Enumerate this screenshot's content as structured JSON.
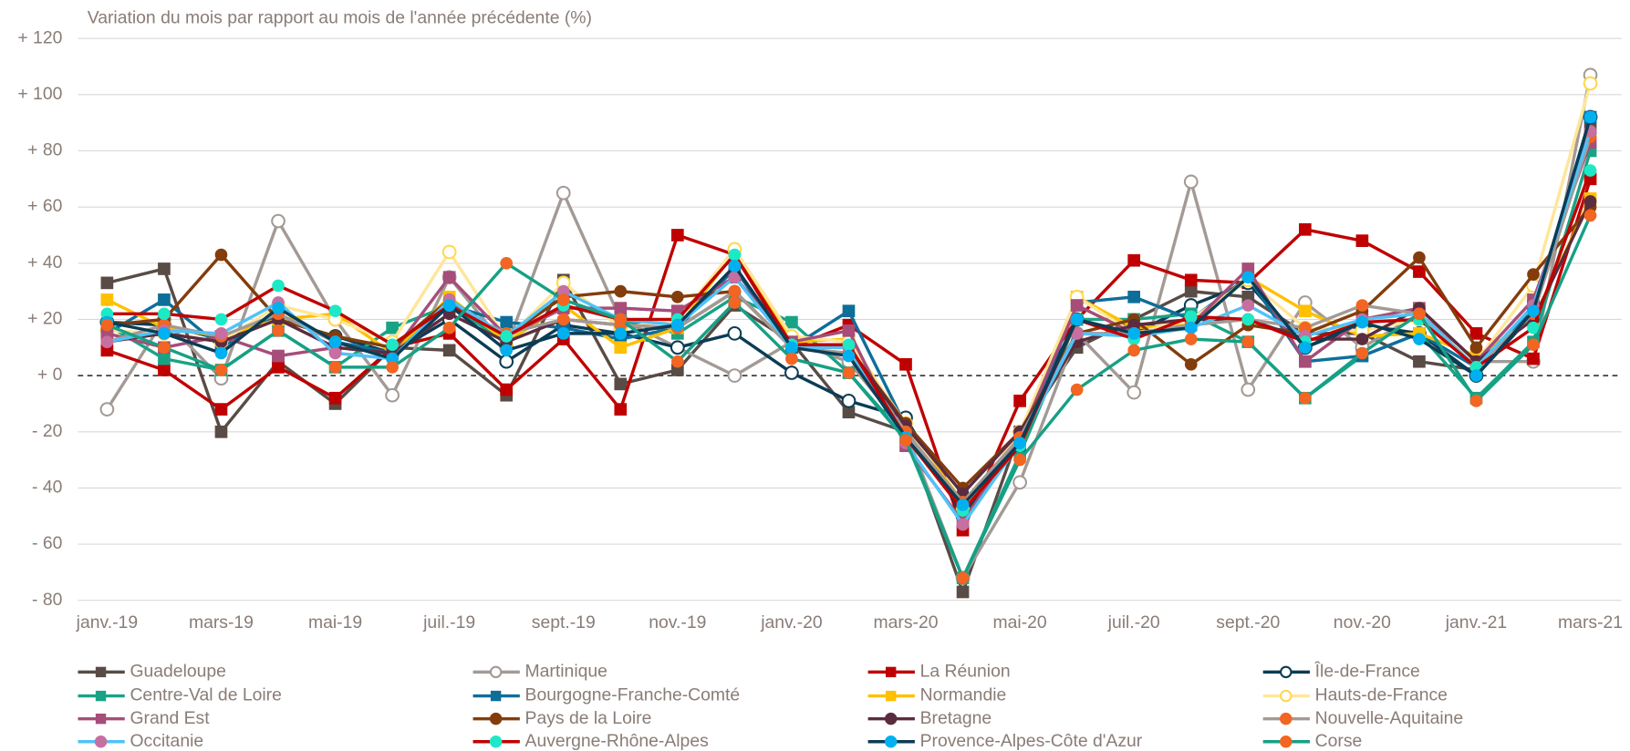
{
  "chart_data": {
    "type": "line",
    "title": "Variation du mois par rapport au mois de l'année précédente (%)",
    "categories": [
      "janv.-19",
      null,
      "mars-19",
      null,
      "mai-19",
      null,
      "juil.-19",
      null,
      "sept.-19",
      null,
      "nov.-19",
      null,
      "janv.-20",
      null,
      "mars-20",
      null,
      "mai-20",
      null,
      "juil.-20",
      null,
      "sept.-20",
      null,
      "nov.-20",
      null,
      "janv.-21",
      null,
      "mars-21"
    ],
    "ylim": [
      -80,
      120
    ],
    "yticks": [
      {
        "value": -80,
        "label": "- 80"
      },
      {
        "value": -60,
        "label": "- 60"
      },
      {
        "value": -40,
        "label": "- 40"
      },
      {
        "value": -20,
        "label": "- 20"
      },
      {
        "value": 0,
        "label": "+ 0"
      },
      {
        "value": 20,
        "label": "+ 20"
      },
      {
        "value": 40,
        "label": "+ 40"
      },
      {
        "value": 60,
        "label": "+ 60"
      },
      {
        "value": 80,
        "label": "+ 80"
      },
      {
        "value": 100,
        "label": "+ 100"
      },
      {
        "value": 120,
        "label": "+ 120"
      }
    ],
    "grid": true,
    "legend": "bottom",
    "series": [
      {
        "name": "Guadeloupe",
        "color": "#594b45",
        "marker": "square",
        "marker_color": "#594b45",
        "values": [
          33,
          38,
          -20,
          5,
          -10,
          10,
          9,
          -7,
          34,
          -3,
          2,
          25,
          12,
          -13,
          -20,
          -77,
          -20,
          10,
          20,
          30,
          28,
          15,
          15,
          5,
          2,
          25,
          88
        ]
      },
      {
        "name": "Martinique",
        "color": "#a39a95",
        "marker": "hollow-circle",
        "marker_color": "#a39a95",
        "values": [
          -12,
          20,
          -1,
          55,
          20,
          -7,
          35,
          10,
          65,
          20,
          10,
          0,
          12,
          5,
          -20,
          -72,
          -38,
          15,
          -6,
          69,
          -5,
          26,
          10,
          22,
          5,
          5,
          107
        ]
      },
      {
        "name": "La Réunion",
        "color": "#c00000",
        "marker": "square",
        "marker_color": "#c00000",
        "values": [
          9,
          2,
          -12,
          3,
          -8,
          10,
          15,
          -5,
          13,
          -12,
          50,
          43,
          10,
          18,
          4,
          -55,
          -9,
          20,
          41,
          34,
          33,
          52,
          48,
          37,
          15,
          6,
          70
        ]
      },
      {
        "name": "Île-de-France",
        "color": "#0b3c55",
        "marker": "hollow-circle",
        "marker_color": "#0b3c55",
        "values": [
          19,
          18,
          13,
          20,
          14,
          8,
          20,
          5,
          18,
          15,
          10,
          15,
          1,
          -9,
          -15,
          -50,
          -20,
          20,
          15,
          25,
          33,
          10,
          18,
          15,
          0,
          22,
          92
        ]
      },
      {
        "name": "Centre-Val de Loire",
        "color": "#19a386",
        "marker": "square",
        "marker_color": "#19a386",
        "values": [
          18,
          6,
          2,
          16,
          3,
          17,
          25,
          12,
          25,
          20,
          15,
          28,
          19,
          1,
          -22,
          -72,
          -28,
          20,
          20,
          22,
          12,
          -8,
          7,
          15,
          -8,
          12,
          80
        ]
      },
      {
        "name": "Bourgogne-Franche-Comté",
        "color": "#0e6e9a",
        "marker": "square",
        "marker_color": "#0e6e9a",
        "values": [
          15,
          27,
          10,
          22,
          12,
          8,
          25,
          19,
          17,
          13,
          17,
          38,
          10,
          23,
          -18,
          -48,
          -25,
          26,
          28,
          20,
          35,
          5,
          7,
          15,
          3,
          23,
          92
        ]
      },
      {
        "name": "Normandie",
        "color": "#ffc000",
        "marker": "square",
        "marker_color": "#ffc000",
        "values": [
          27,
          17,
          14,
          20,
          22,
          8,
          28,
          12,
          25,
          10,
          17,
          44,
          12,
          13,
          -18,
          -45,
          -22,
          28,
          17,
          18,
          35,
          23,
          14,
          15,
          7,
          20,
          63
        ]
      },
      {
        "name": "Hauts-de-France",
        "color": "#ffe699",
        "marker": "hollow-circle",
        "marker_color": "#ffd84d",
        "values": [
          16,
          15,
          12,
          25,
          20,
          12,
          44,
          13,
          33,
          17,
          20,
          45,
          14,
          12,
          -17,
          -48,
          -20,
          28,
          15,
          20,
          34,
          17,
          16,
          20,
          5,
          32,
          104
        ]
      },
      {
        "name": "Grand Est",
        "color": "#a64d79",
        "marker": "square",
        "marker_color": "#a64d79",
        "values": [
          15,
          10,
          14,
          7,
          10,
          8,
          35,
          14,
          24,
          24,
          23,
          35,
          12,
          16,
          -25,
          -52,
          -22,
          25,
          15,
          18,
          38,
          5,
          20,
          24,
          5,
          27,
          83
        ]
      },
      {
        "name": "Pays de la Loire",
        "color": "#833c0b",
        "marker": "circle",
        "marker_color": "#833c0b",
        "values": [
          18,
          20,
          43,
          20,
          14,
          10,
          27,
          14,
          28,
          30,
          28,
          30,
          10,
          10,
          -17,
          -40,
          -20,
          15,
          20,
          4,
          18,
          15,
          23,
          42,
          10,
          36,
          60
        ]
      },
      {
        "name": "Bretagne",
        "color": "#5b2c3f",
        "marker": "circle",
        "marker_color": "#5b2c3f",
        "values": [
          12,
          15,
          12,
          20,
          10,
          8,
          22,
          12,
          20,
          18,
          17,
          30,
          10,
          10,
          -18,
          -42,
          -20,
          12,
          18,
          20,
          20,
          13,
          13,
          24,
          5,
          20,
          62
        ]
      },
      {
        "name": "Nouvelle-Aquitaine",
        "color": "#a39a95",
        "marker": "circle",
        "marker_color": "#f26522",
        "values": [
          12,
          18,
          14,
          22,
          12,
          6,
          25,
          15,
          20,
          18,
          17,
          30,
          10,
          8,
          -20,
          -45,
          -22,
          15,
          15,
          18,
          20,
          17,
          25,
          22,
          3,
          22,
          85
        ]
      },
      {
        "name": "Occitanie",
        "color": "#4fc3f7",
        "marker": "circle",
        "marker_color": "#c66fa0",
        "values": [
          12,
          16,
          15,
          26,
          8,
          6,
          27,
          14,
          30,
          20,
          18,
          35,
          10,
          10,
          -24,
          -53,
          -24,
          15,
          14,
          17,
          25,
          14,
          20,
          22,
          3,
          25,
          87
        ]
      },
      {
        "name": "Auvergne-Rhône-Alpes",
        "color": "#c00000",
        "marker": "circle",
        "marker_color": "#1de9c6",
        "values": [
          22,
          22,
          20,
          32,
          23,
          11,
          25,
          14,
          25,
          20,
          20,
          43,
          11,
          11,
          -22,
          -48,
          -25,
          20,
          13,
          21,
          20,
          12,
          19,
          20,
          3,
          17,
          73
        ]
      },
      {
        "name": "Provence-Alpes-Côte d'Azur",
        "color": "#0b3c55",
        "marker": "circle",
        "marker_color": "#00b0f0",
        "values": [
          19,
          15,
          8,
          24,
          12,
          6,
          25,
          9,
          15,
          15,
          18,
          39,
          10,
          7,
          -22,
          -46,
          -24,
          20,
          15,
          17,
          35,
          10,
          19,
          13,
          0,
          23,
          92
        ]
      },
      {
        "name": "Corse",
        "color": "#16a085",
        "marker": "circle",
        "marker_color": "#f26522",
        "values": [
          18,
          10,
          2,
          16,
          3,
          3,
          17,
          40,
          27,
          20,
          5,
          26,
          6,
          1,
          -23,
          -72,
          -30,
          -5,
          9,
          13,
          12,
          -8,
          8,
          22,
          -9,
          11,
          57
        ]
      }
    ]
  }
}
